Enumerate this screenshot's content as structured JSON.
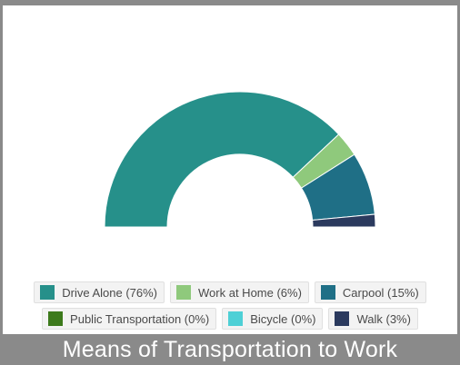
{
  "chart_data": {
    "type": "pie",
    "style": "semicircle-donut",
    "title": "Means of Transportation to Work",
    "slices": [
      {
        "label": "Drive Alone (76%)",
        "value": 76,
        "color": "#26908a"
      },
      {
        "label": "Work at Home (6%)",
        "value": 6,
        "color": "#8fc97c"
      },
      {
        "label": "Carpool (15%)",
        "value": 15,
        "color": "#1f6f86"
      },
      {
        "label": "Public Transportation (0%)",
        "value": 0,
        "color": "#3d7a1c"
      },
      {
        "label": "Bicycle (0%)",
        "value": 0,
        "color": "#4ed0d6"
      },
      {
        "label": "Walk (3%)",
        "value": 3,
        "color": "#2b3a5e"
      }
    ],
    "legend_position": "bottom"
  },
  "legend": {
    "row1": [
      0,
      1,
      2
    ],
    "row2": [
      3,
      4,
      5
    ]
  }
}
